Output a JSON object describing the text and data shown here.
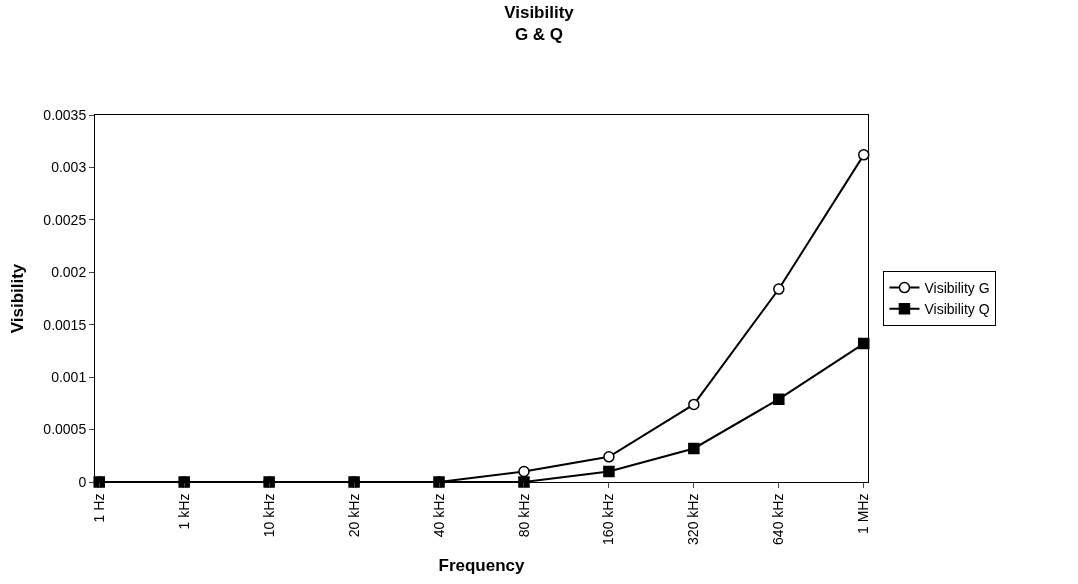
{
  "chart_data": {
    "type": "line",
    "title": "Visibility",
    "subtitle": "G & Q",
    "xlabel": "Frequency",
    "ylabel": "Visibility",
    "categories": [
      "1 Hz",
      "1 kHz",
      "10 kHz",
      "20 kHz",
      "40 kHz",
      "80 kHz",
      "160 kHz",
      "320 kHz",
      "640 kHz",
      "1 MHz"
    ],
    "series": [
      {
        "name": "Visibility G",
        "color": "#000000",
        "marker": "circle",
        "values": [
          0,
          0,
          0,
          0,
          0,
          0.0001,
          0.00024,
          0.00074,
          0.00184,
          0.00312
        ]
      },
      {
        "name": "Visibility Q",
        "color": "#000000",
        "marker": "square",
        "values": [
          0,
          0,
          0,
          0,
          0,
          0,
          0.0001,
          0.00032,
          0.00079,
          0.00132
        ]
      }
    ],
    "ylim": [
      0,
      0.0035
    ],
    "yticks": [
      0,
      0.0005,
      0.001,
      0.0015,
      0.002,
      0.0025,
      0.003,
      0.0035
    ],
    "legend": "right",
    "line_style": "solid"
  }
}
